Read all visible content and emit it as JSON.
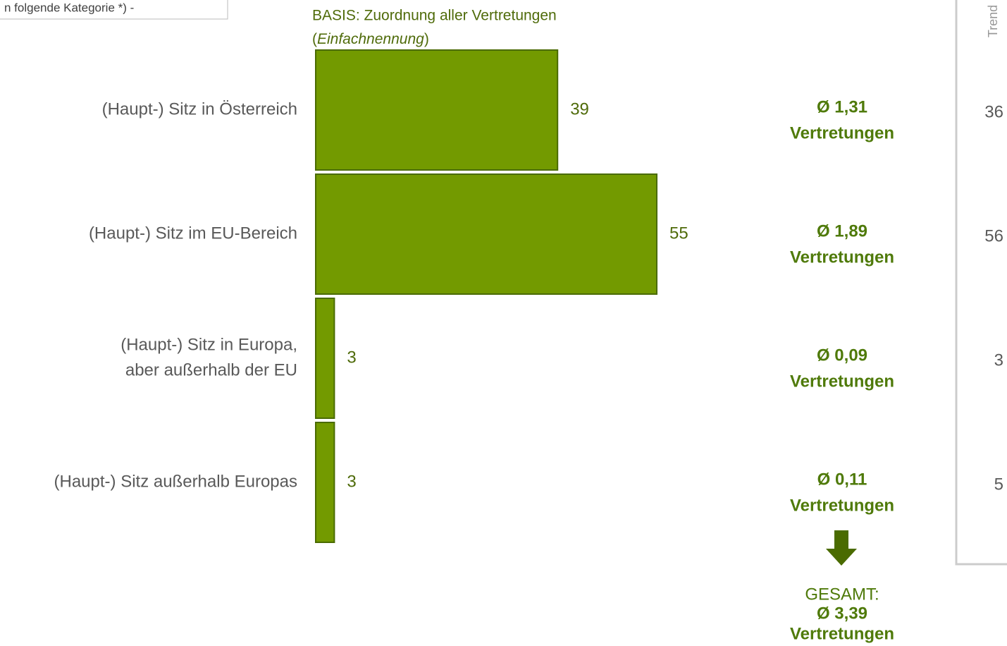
{
  "header_box": "n folgende Kategorie *) -",
  "chart_data": {
    "type": "bar",
    "orientation": "horizontal",
    "subtitle": {
      "line1": "BASIS: Zuordnung aller Vertretungen",
      "line2": [
        "(",
        "Einfachnennung",
        ")"
      ]
    },
    "categories": [
      [
        "(Haupt-) Sitz in Österreich"
      ],
      [
        "(Haupt-) Sitz im EU-Bereich"
      ],
      [
        "(Haupt-) Sitz in Europa,",
        "aber außerhalb der EU"
      ],
      [
        "(Haupt-) Sitz außerhalb Europas"
      ]
    ],
    "values": [
      39,
      55,
      3,
      3
    ],
    "color": "#739a00",
    "average_labels": [
      "Ø 1,31",
      "Ø 1,89",
      "Ø 0,09",
      "Ø 0,11"
    ],
    "average_unit": "Vertretungen",
    "total_label": "GESAMT:",
    "total_value": "Ø 3,39",
    "trend_title": "Trend",
    "trend_values": [
      36,
      56,
      3,
      5
    ]
  }
}
